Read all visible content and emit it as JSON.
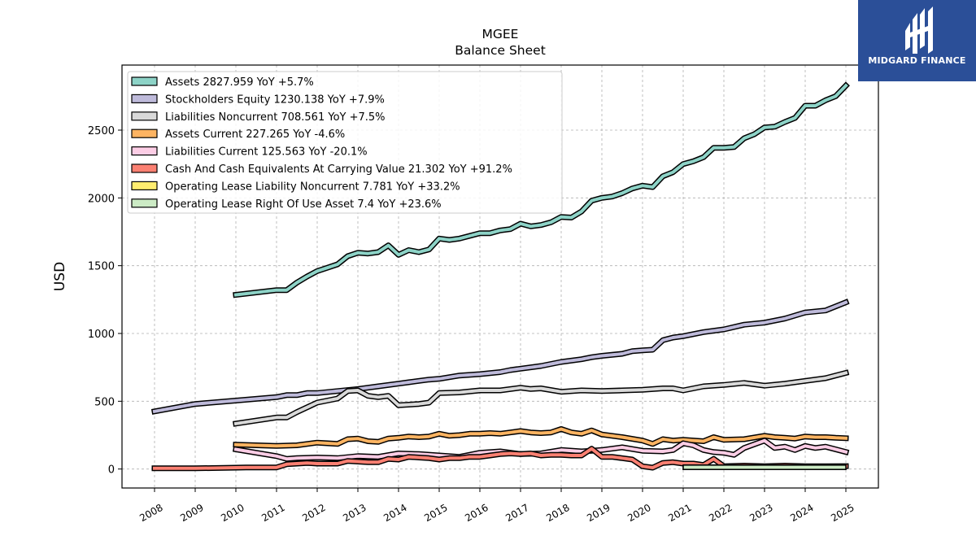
{
  "brand": {
    "name": "MIDGARD FINANCE",
    "color": "#2b4f98"
  },
  "chart_data": {
    "type": "line",
    "title": "MGEE",
    "subtitle": "Balance  Sheet",
    "ylabel": "USD",
    "xlabel": "",
    "ylim": [
      -140,
      2980
    ],
    "xlim": [
      2007.2,
      2025.8
    ],
    "yticks": [
      0,
      500,
      1000,
      1500,
      2000,
      2500
    ],
    "xticks": [
      "2008",
      "2009",
      "2010",
      "2011",
      "2012",
      "2013",
      "2014",
      "2015",
      "2016",
      "2017",
      "2018",
      "2019",
      "2020",
      "2021",
      "2022",
      "2023",
      "2024",
      "2025"
    ],
    "grid": true,
    "legend_position": "top-left",
    "series": [
      {
        "name": "Assets  2827.959 YoY +5.7%",
        "color": "#8dd3c7",
        "x": [
          2010.0,
          2011.0,
          2011.25,
          2011.5,
          2011.75,
          2012.0,
          2012.25,
          2012.5,
          2012.75,
          2013.0,
          2013.25,
          2013.5,
          2013.75,
          2014.0,
          2014.25,
          2014.5,
          2014.75,
          2015.0,
          2015.25,
          2015.5,
          2015.75,
          2016.0,
          2016.25,
          2016.5,
          2016.75,
          2017.0,
          2017.25,
          2017.5,
          2017.75,
          2018.0,
          2018.25,
          2018.5,
          2018.75,
          2019.0,
          2019.25,
          2019.5,
          2019.75,
          2020.0,
          2020.25,
          2020.5,
          2020.75,
          2021.0,
          2021.25,
          2021.5,
          2021.75,
          2022.0,
          2022.25,
          2022.5,
          2022.75,
          2023.0,
          2023.25,
          2023.5,
          2023.75,
          2024.0,
          2024.25,
          2024.5,
          2024.75,
          2025.0
        ],
        "y": [
          1285,
          1320,
          1320,
          1375,
          1420,
          1460,
          1485,
          1510,
          1570,
          1595,
          1590,
          1600,
          1650,
          1580,
          1615,
          1600,
          1620,
          1700,
          1690,
          1700,
          1720,
          1740,
          1740,
          1760,
          1770,
          1810,
          1790,
          1800,
          1820,
          1860,
          1855,
          1900,
          1980,
          2000,
          2010,
          2035,
          2070,
          2090,
          2080,
          2160,
          2190,
          2250,
          2270,
          2300,
          2370,
          2370,
          2375,
          2440,
          2470,
          2520,
          2525,
          2560,
          2590,
          2680,
          2680,
          2720,
          2750,
          2828
        ]
      },
      {
        "name": "Stockholders Equity  1230.138 YoY +7.9%",
        "color": "#bebada",
        "x": [
          2008.0,
          2009.0,
          2010.0,
          2011.0,
          2011.25,
          2011.5,
          2011.75,
          2012.0,
          2012.5,
          2013.0,
          2013.5,
          2014.0,
          2014.25,
          2014.5,
          2014.75,
          2015.0,
          2015.5,
          2016.0,
          2016.5,
          2016.75,
          2017.0,
          2017.5,
          2018.0,
          2018.5,
          2018.75,
          2019.0,
          2019.5,
          2019.75,
          2020.0,
          2020.25,
          2020.5,
          2020.75,
          2021.0,
          2021.5,
          2022.0,
          2022.5,
          2023.0,
          2023.5,
          2024.0,
          2024.5,
          2024.75,
          2025.0
        ],
        "y": [
          425,
          480,
          505,
          530,
          545,
          545,
          560,
          560,
          575,
          590,
          610,
          630,
          640,
          650,
          660,
          665,
          690,
          700,
          715,
          730,
          740,
          760,
          790,
          810,
          825,
          835,
          850,
          870,
          875,
          880,
          950,
          970,
          980,
          1010,
          1030,
          1065,
          1080,
          1110,
          1155,
          1170,
          1200,
          1230
        ]
      },
      {
        "name": "Liabilities Noncurrent  708.561 YoY +7.5%",
        "color": "#d9d9d9",
        "x": [
          2010.0,
          2011.0,
          2011.25,
          2011.5,
          2012.0,
          2012.5,
          2012.75,
          2013.0,
          2013.25,
          2013.5,
          2013.75,
          2014.0,
          2014.5,
          2014.75,
          2015.0,
          2015.5,
          2016.0,
          2016.5,
          2017.0,
          2017.25,
          2017.5,
          2018.0,
          2018.5,
          2019.0,
          2019.5,
          2020.0,
          2020.5,
          2020.75,
          2021.0,
          2021.5,
          2022.0,
          2022.5,
          2023.0,
          2023.5,
          2024.0,
          2024.5,
          2025.0
        ],
        "y": [
          335,
          380,
          380,
          420,
          490,
          520,
          575,
          580,
          540,
          530,
          540,
          470,
          480,
          490,
          560,
          565,
          580,
          580,
          600,
          590,
          595,
          570,
          580,
          575,
          580,
          585,
          595,
          595,
          580,
          610,
          620,
          635,
          615,
          630,
          650,
          670,
          709
        ]
      },
      {
        "name": "Assets Current  227.265 YoY -4.6%",
        "color": "#fdb462",
        "x": [
          2010.0,
          2011.0,
          2011.5,
          2012.0,
          2012.5,
          2012.75,
          2013.0,
          2013.25,
          2013.5,
          2013.75,
          2014.0,
          2014.25,
          2014.5,
          2014.75,
          2015.0,
          2015.25,
          2015.5,
          2015.75,
          2016.0,
          2016.25,
          2016.5,
          2016.75,
          2017.0,
          2017.25,
          2017.5,
          2017.75,
          2018.0,
          2018.25,
          2018.5,
          2018.75,
          2019.0,
          2019.5,
          2020.0,
          2020.25,
          2020.5,
          2020.75,
          2021.0,
          2021.5,
          2021.75,
          2022.0,
          2022.5,
          2023.0,
          2023.25,
          2023.5,
          2023.75,
          2024.0,
          2024.25,
          2024.5,
          2024.75,
          2025.0
        ],
        "y": [
          180,
          170,
          175,
          195,
          185,
          220,
          225,
          205,
          200,
          225,
          230,
          240,
          235,
          240,
          260,
          245,
          250,
          260,
          260,
          265,
          260,
          270,
          280,
          270,
          265,
          270,
          295,
          270,
          260,
          285,
          255,
          235,
          210,
          185,
          220,
          210,
          215,
          205,
          235,
          215,
          220,
          245,
          235,
          230,
          225,
          240,
          235,
          235,
          230,
          227
        ]
      },
      {
        "name": "Liabilities Current  125.563 YoY -20.1%",
        "color": "#fccde5",
        "x": [
          2010.0,
          2011.0,
          2011.25,
          2011.5,
          2012.0,
          2012.5,
          2013.0,
          2013.5,
          2014.0,
          2014.5,
          2015.0,
          2015.5,
          2016.0,
          2016.5,
          2017.0,
          2017.5,
          2018.0,
          2018.5,
          2018.75,
          2019.0,
          2019.5,
          2020.0,
          2020.5,
          2020.75,
          2021.0,
          2021.25,
          2021.5,
          2021.75,
          2022.0,
          2022.25,
          2022.5,
          2023.0,
          2023.25,
          2023.5,
          2023.75,
          2024.0,
          2024.25,
          2024.5,
          2025.0
        ],
        "y": [
          145,
          95,
          75,
          80,
          85,
          80,
          95,
          90,
          115,
          110,
          100,
          90,
          120,
          130,
          110,
          115,
          140,
          130,
          135,
          140,
          160,
          135,
          130,
          140,
          190,
          175,
          140,
          125,
          120,
          105,
          155,
          210,
          155,
          165,
          140,
          170,
          155,
          165,
          126
        ]
      },
      {
        "name": "Cash And Cash Equivalents At Carrying Value  21.302 YoY +91.2%",
        "color": "#fb8072",
        "x": [
          2008.0,
          2009.0,
          2010.0,
          2010.25,
          2011.0,
          2011.25,
          2011.5,
          2011.75,
          2012.0,
          2012.5,
          2012.75,
          2013.0,
          2013.25,
          2013.5,
          2013.75,
          2014.0,
          2014.25,
          2014.5,
          2014.75,
          2015.0,
          2015.25,
          2015.5,
          2015.75,
          2016.0,
          2016.25,
          2016.5,
          2016.75,
          2017.0,
          2017.25,
          2017.5,
          2017.75,
          2018.0,
          2018.25,
          2018.5,
          2018.75,
          2019.0,
          2019.25,
          2019.5,
          2019.75,
          2020.0,
          2020.25,
          2020.5,
          2020.75,
          2021.0,
          2021.25,
          2021.5,
          2021.75,
          2022.0,
          2022.5,
          2023.0,
          2023.5,
          2024.0,
          2024.5,
          2025.0
        ],
        "y": [
          5,
          5,
          10,
          12,
          12,
          35,
          40,
          45,
          40,
          40,
          60,
          55,
          50,
          50,
          75,
          70,
          90,
          85,
          80,
          70,
          80,
          80,
          90,
          90,
          100,
          110,
          115,
          110,
          115,
          100,
          105,
          105,
          100,
          100,
          150,
          90,
          90,
          80,
          70,
          20,
          10,
          45,
          50,
          40,
          40,
          30,
          75,
          20,
          25,
          20,
          25,
          20,
          20,
          21
        ]
      },
      {
        "name": "Operating Lease Liability Noncurrent  7.781 YoY +33.2%",
        "color": "#ffed6f",
        "x": [
          2021.0,
          2022.0,
          2023.0,
          2024.0,
          2025.0
        ],
        "y": [
          5,
          5,
          5,
          6,
          8
        ]
      },
      {
        "name": "Operating Lease Right Of Use Asset  7.4 YoY +23.6%",
        "color": "#ccebc5",
        "x": [
          2021.0,
          2022.0,
          2023.0,
          2024.0,
          2025.0
        ],
        "y": [
          5,
          5,
          5,
          6,
          7
        ]
      }
    ]
  }
}
